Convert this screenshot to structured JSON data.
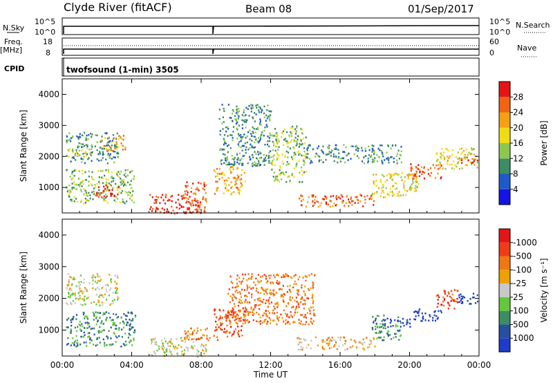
{
  "header": {
    "station": "Clyde River (fitACF)",
    "beam": "Beam 08",
    "date": "01/Sep/2017"
  },
  "top_panels": {
    "nsky_label": "N.Sky",
    "nsky_ticks": [
      "10^5",
      "10^0"
    ],
    "nsearch_label": "N.Search",
    "nsearch_ticks": [
      "10^5",
      "10^0"
    ],
    "freq_label": "Freq.",
    "freq_unit": "[MHz]",
    "freq_ticks": [
      "18",
      "8"
    ],
    "nave_label": "Nave",
    "nave_ticks": [
      "60",
      "0"
    ],
    "cpid_label": "CPID",
    "cpid_text": "twofsound (1-min) 3505"
  },
  "chart_data": [
    {
      "type": "heatmap",
      "panel": "power",
      "ylabel": "Slant Range [km]",
      "xlabel": "",
      "x_ticks": [
        "00:00",
        "04:00",
        "08:00",
        "12:00",
        "16:00",
        "20:00",
        "00:00"
      ],
      "xlim_hours": [
        0,
        24
      ],
      "ylim": [
        180,
        4500
      ],
      "y_ticks": [
        1000,
        2000,
        3000,
        4000
      ],
      "colorbar": {
        "label": "Power [dB]",
        "ticks": [
          "4",
          "8",
          "12",
          "16",
          "20",
          "24",
          "28"
        ],
        "colors": [
          "#1414e6",
          "#1e5ac8",
          "#3c8c64",
          "#8cc850",
          "#f0dc14",
          "#f5a014",
          "#f06414",
          "#e61414"
        ]
      },
      "regions": [
        {
          "t0": 0.2,
          "t1": 3.2,
          "r0": 1800,
          "r1": 2800,
          "level": 2
        },
        {
          "t0": 0.3,
          "t1": 1.6,
          "r0": 2000,
          "r1": 2300,
          "level": 4
        },
        {
          "t0": 2.2,
          "t1": 3.6,
          "r0": 2200,
          "r1": 2700,
          "level": 5
        },
        {
          "t0": 0.2,
          "t1": 4.2,
          "r0": 500,
          "r1": 1600,
          "level": 3
        },
        {
          "t0": 1.8,
          "t1": 3.2,
          "r0": 700,
          "r1": 1100,
          "level": 7
        },
        {
          "t0": 5.0,
          "t1": 7.8,
          "r0": 180,
          "r1": 800,
          "level": 7
        },
        {
          "t0": 7.0,
          "t1": 8.3,
          "r0": 180,
          "r1": 1200,
          "level": 6
        },
        {
          "t0": 8.7,
          "t1": 10.5,
          "r0": 800,
          "r1": 1700,
          "level": 5
        },
        {
          "t0": 9.0,
          "t1": 12.0,
          "r0": 1700,
          "r1": 3700,
          "level": 2
        },
        {
          "t0": 12.0,
          "t1": 14.0,
          "r0": 1200,
          "r1": 3000,
          "level": 3
        },
        {
          "t0": 13.5,
          "t1": 18.0,
          "r0": 400,
          "r1": 800,
          "level": 6
        },
        {
          "t0": 14.0,
          "t1": 19.5,
          "r0": 1800,
          "r1": 2400,
          "level": 2
        },
        {
          "t0": 17.8,
          "t1": 20.5,
          "r0": 700,
          "r1": 1500,
          "level": 4
        },
        {
          "t0": 20.0,
          "t1": 21.8,
          "r0": 1300,
          "r1": 1800,
          "level": 6
        },
        {
          "t0": 21.5,
          "t1": 23.9,
          "r0": 1600,
          "r1": 2300,
          "level": 4
        },
        {
          "t0": 22.8,
          "t1": 23.9,
          "r0": 1800,
          "r1": 2000,
          "level": 7
        }
      ]
    },
    {
      "type": "heatmap",
      "panel": "velocity",
      "ylabel": "Slant Range [km]",
      "xlabel": "Time UT",
      "x_ticks": [
        "00:00",
        "04:00",
        "08:00",
        "12:00",
        "16:00",
        "20:00",
        "00:00"
      ],
      "xlim_hours": [
        0,
        24
      ],
      "ylim": [
        180,
        4500
      ],
      "y_ticks": [
        1000,
        2000,
        3000,
        4000
      ],
      "colorbar": {
        "label": "Velocity [m s⁻¹]",
        "ticks": [
          "1000",
          "500",
          "100",
          "25",
          "-25",
          "-100",
          "-500",
          "-1000"
        ],
        "colors": [
          "#1e3cc8",
          "#2850a0",
          "#3c8c64",
          "#64c83c",
          "#c8c8c8",
          "#f0a000",
          "#f07814",
          "#f03c14",
          "#e61414"
        ]
      },
      "regions": [
        {
          "t0": 0.2,
          "t1": 3.2,
          "r0": 1800,
          "r1": 2800,
          "level": 4
        },
        {
          "t0": 0.2,
          "t1": 4.2,
          "r0": 500,
          "r1": 1600,
          "level": 2
        },
        {
          "t0": 5.0,
          "t1": 8.3,
          "r0": 180,
          "r1": 800,
          "level": 4
        },
        {
          "t0": 7.0,
          "t1": 9.0,
          "r0": 700,
          "r1": 1100,
          "level": 6
        },
        {
          "t0": 8.7,
          "t1": 10.5,
          "r0": 800,
          "r1": 1700,
          "level": 7
        },
        {
          "t0": 9.5,
          "t1": 14.5,
          "r0": 1200,
          "r1": 2800,
          "level": 6
        },
        {
          "t0": 13.5,
          "t1": 18.0,
          "r0": 400,
          "r1": 800,
          "level": 5
        },
        {
          "t0": 17.8,
          "t1": 19.5,
          "r0": 700,
          "r1": 1500,
          "level": 2
        },
        {
          "t0": 18.5,
          "t1": 20.0,
          "r0": 1100,
          "r1": 1400,
          "level": 0
        },
        {
          "t0": 20.2,
          "t1": 21.8,
          "r0": 1300,
          "r1": 1700,
          "level": 0
        },
        {
          "t0": 21.5,
          "t1": 22.8,
          "r0": 1700,
          "r1": 2300,
          "level": 7
        },
        {
          "t0": 22.8,
          "t1": 23.9,
          "r0": 1800,
          "r1": 2200,
          "level": 0
        }
      ]
    }
  ]
}
